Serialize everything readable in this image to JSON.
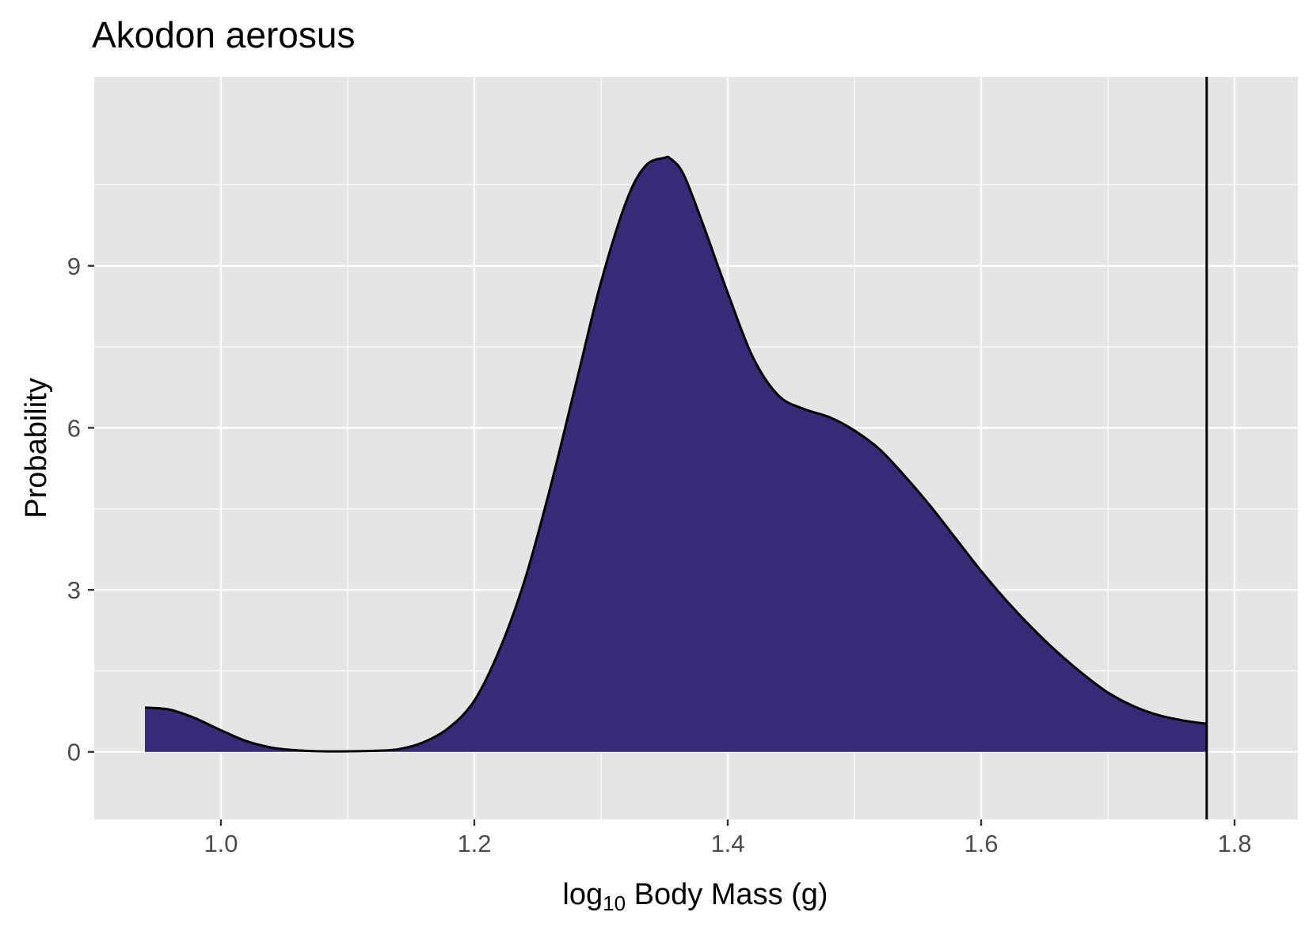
{
  "chart_data": {
    "type": "area",
    "title": "Akodon aerosus",
    "xlabel": {
      "prefix": "log",
      "subscript": "10",
      "suffix": " Body Mass (g)"
    },
    "ylabel": "Probability",
    "xlim": [
      0.9,
      1.85
    ],
    "ylim": [
      -1.25,
      12.5
    ],
    "x_ticks": [
      {
        "value": 1.0,
        "label": "1.0"
      },
      {
        "value": 1.2,
        "label": "1.2"
      },
      {
        "value": 1.4,
        "label": "1.4"
      },
      {
        "value": 1.6,
        "label": "1.6"
      },
      {
        "value": 1.8,
        "label": "1.8"
      }
    ],
    "y_ticks": [
      {
        "value": 0,
        "label": "0"
      },
      {
        "value": 3,
        "label": "3"
      },
      {
        "value": 6,
        "label": "6"
      },
      {
        "value": 9,
        "label": "9"
      }
    ],
    "grid": true,
    "panel_background": "#e5e5e5",
    "grid_color": "#ffffff",
    "fill_color": "#372a77",
    "line_color": "#000000",
    "vline_x": 1.778,
    "density": {
      "x": [
        0.94,
        0.96,
        0.98,
        1.0,
        1.02,
        1.04,
        1.06,
        1.08,
        1.1,
        1.12,
        1.14,
        1.16,
        1.18,
        1.2,
        1.22,
        1.24,
        1.26,
        1.28,
        1.3,
        1.32,
        1.335,
        1.35,
        1.355,
        1.365,
        1.38,
        1.4,
        1.42,
        1.44,
        1.46,
        1.48,
        1.5,
        1.52,
        1.54,
        1.56,
        1.58,
        1.6,
        1.62,
        1.64,
        1.66,
        1.68,
        1.7,
        1.72,
        1.74,
        1.76,
        1.778
      ],
      "y": [
        0.82,
        0.78,
        0.62,
        0.4,
        0.2,
        0.08,
        0.03,
        0.01,
        0.01,
        0.02,
        0.05,
        0.18,
        0.45,
        0.95,
        1.9,
        3.2,
        4.9,
        6.8,
        8.7,
        10.2,
        10.85,
        11.0,
        10.98,
        10.7,
        9.8,
        8.5,
        7.3,
        6.6,
        6.35,
        6.2,
        5.95,
        5.6,
        5.1,
        4.55,
        3.95,
        3.35,
        2.8,
        2.3,
        1.85,
        1.45,
        1.1,
        0.85,
        0.68,
        0.58,
        0.52
      ]
    }
  }
}
